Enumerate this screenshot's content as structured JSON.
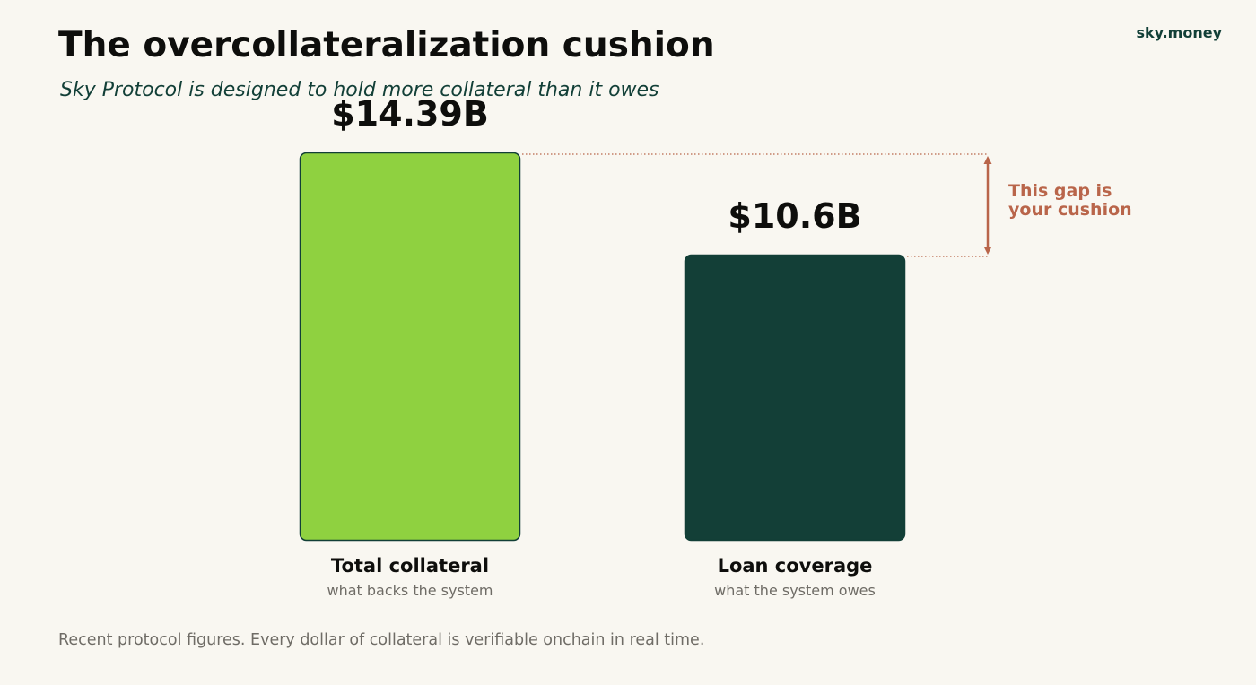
{
  "title": "The overcollateralization cushion",
  "subtitle": "Sky Protocol is designed to hold more collateral than it owes",
  "brand": "sky.money",
  "footnote": "Recent protocol figures. Every dollar of collateral is verifiable onchain in real time.",
  "annotation": {
    "lines": [
      "This gap is",
      "your cushion"
    ],
    "color": "#b9654a"
  },
  "chart_data": {
    "type": "bar",
    "title": "The overcollateralization cushion",
    "subtitle": "Sky Protocol is designed to hold more collateral than it owes",
    "unit": "$B",
    "categories": [
      "Total collateral",
      "Loan coverage"
    ],
    "sublabels": [
      "what backs the system",
      "what the system owes"
    ],
    "values": [
      14.39,
      10.6
    ],
    "value_labels": [
      "$14.39B",
      "$10.6B"
    ],
    "colors": [
      "#8fd140",
      "#133f37"
    ],
    "ylim": [
      0,
      14.39
    ],
    "grid": false,
    "legend": "none",
    "annotations": [
      "This gap is your cushion"
    ]
  }
}
